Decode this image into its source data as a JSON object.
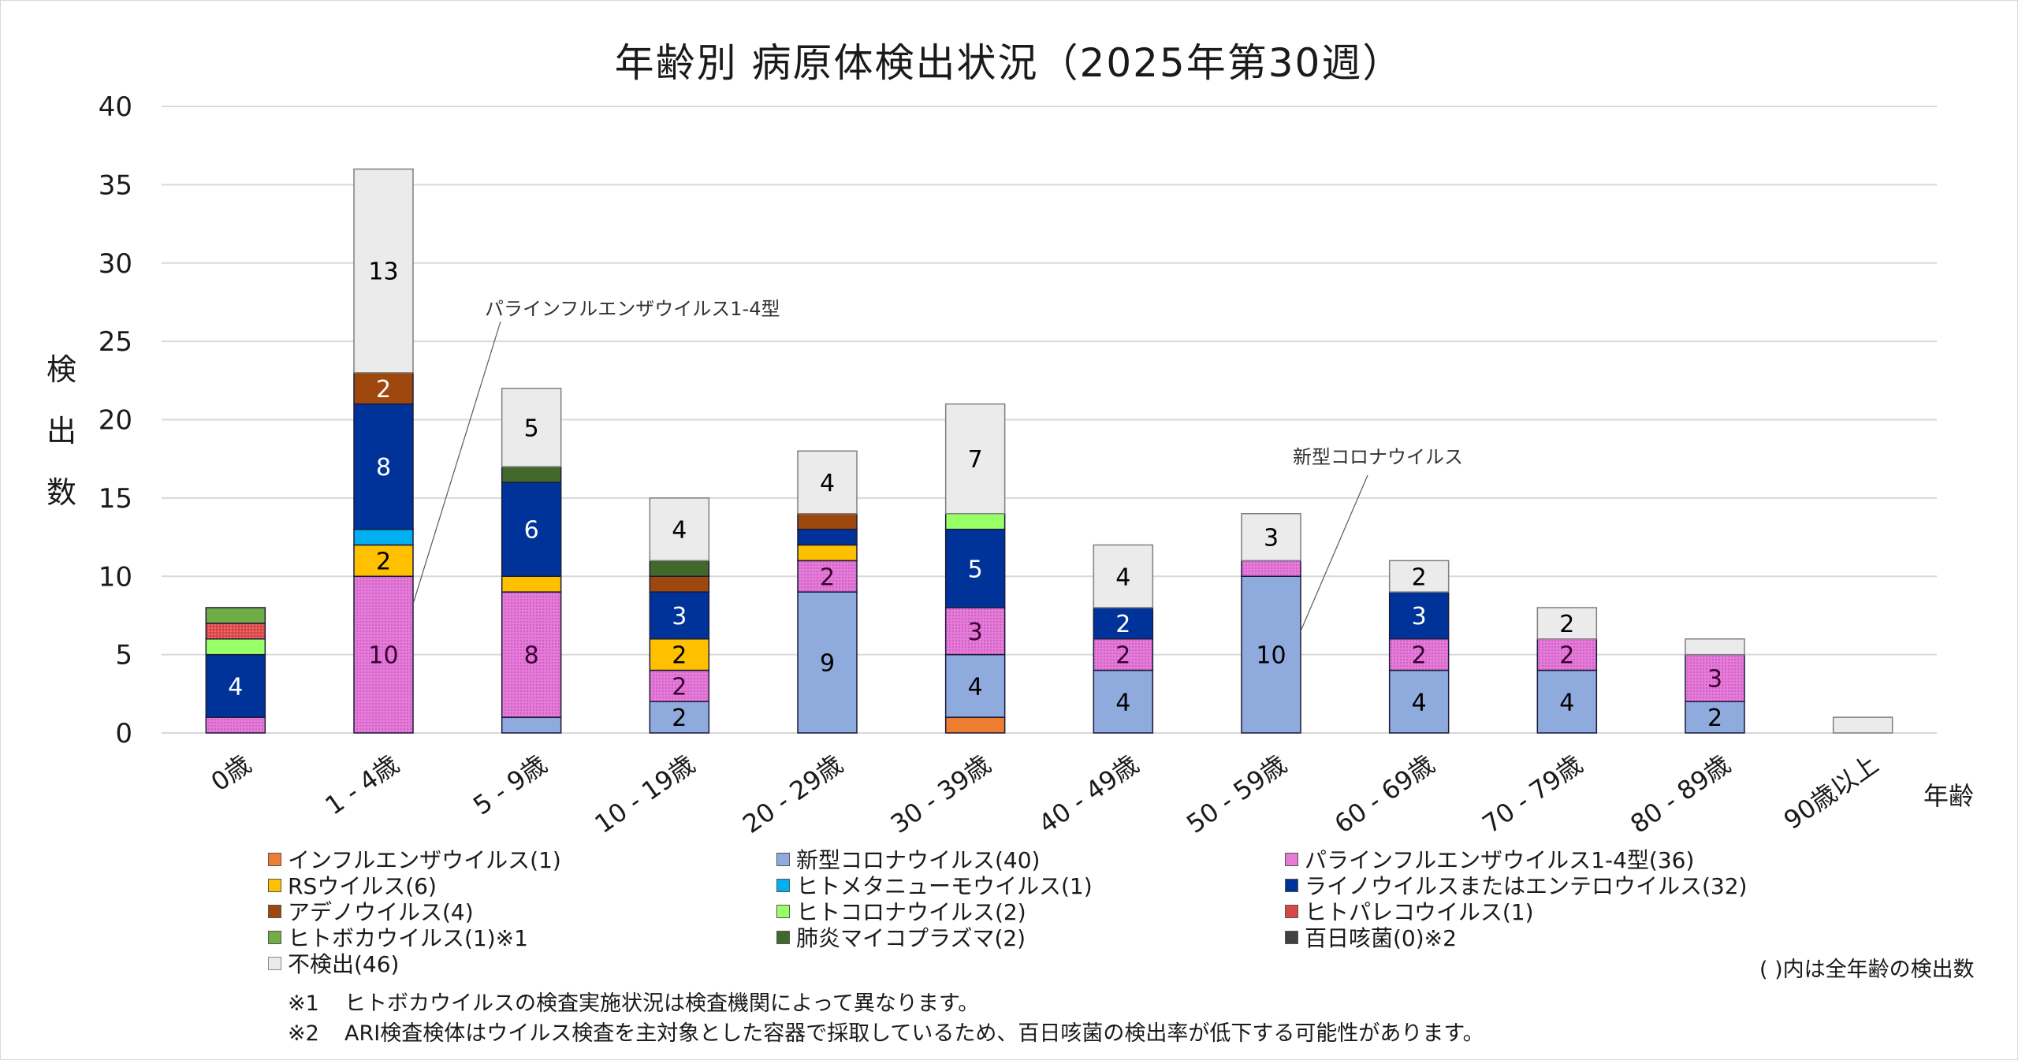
{
  "chart_data": {
    "type": "bar",
    "stacked": true,
    "title": "年齢別 病原体検出状況（2025年第30週）",
    "xlabel": "年齢",
    "ylabel": "検出数",
    "ylim": [
      0,
      40
    ],
    "yticks": [
      0,
      5,
      10,
      15,
      20,
      25,
      30,
      35,
      40
    ],
    "grid": true,
    "legend_position": "bottom",
    "categories": [
      "0歳",
      "1 - 4歳",
      "5 - 9歳",
      "10 - 19歳",
      "20 - 29歳",
      "30 - 39歳",
      "40 - 49歳",
      "50 - 59歳",
      "60 - 69歳",
      "70 - 79歳",
      "80 - 89歳",
      "90歳以上"
    ],
    "series": [
      {
        "name": "インフルエンザウイルス",
        "total": 1,
        "color": "#ED7D31",
        "label_color": "#000000",
        "pattern": false,
        "values": [
          0,
          0,
          0,
          0,
          0,
          1,
          0,
          0,
          0,
          0,
          0,
          0
        ]
      },
      {
        "name": "新型コロナウイルス",
        "total": 40,
        "color": "#8FAADC",
        "label_color": "#000000",
        "pattern": false,
        "values": [
          0,
          0,
          1,
          2,
          9,
          4,
          4,
          10,
          4,
          4,
          2,
          0
        ]
      },
      {
        "name": "パラインフルエンザウイルス1-4型",
        "total": 36,
        "color": "#E57BD8",
        "label_color": "#3a0033",
        "pattern": true,
        "values": [
          1,
          10,
          8,
          2,
          2,
          3,
          2,
          1,
          2,
          2,
          3,
          0
        ]
      },
      {
        "name": "RSウイルス",
        "total": 6,
        "color": "#FFC000",
        "label_color": "#000000",
        "pattern": false,
        "values": [
          0,
          2,
          1,
          2,
          1,
          0,
          0,
          0,
          0,
          0,
          0,
          0
        ]
      },
      {
        "name": "ヒトメタニューモウイルス",
        "total": 1,
        "color": "#00B0F0",
        "label_color": "#000000",
        "pattern": false,
        "values": [
          0,
          1,
          0,
          0,
          0,
          0,
          0,
          0,
          0,
          0,
          0,
          0
        ]
      },
      {
        "name": "ライノウイルスまたはエンテロウイルス",
        "total": 32,
        "color": "#003399",
        "label_color": "#ffffff",
        "pattern": false,
        "values": [
          4,
          8,
          6,
          3,
          1,
          5,
          2,
          0,
          3,
          0,
          0,
          0
        ]
      },
      {
        "name": "アデノウイルス",
        "total": 4,
        "color": "#9E480E",
        "label_color": "#ffffff",
        "pattern": false,
        "values": [
          0,
          2,
          0,
          1,
          1,
          0,
          0,
          0,
          0,
          0,
          0,
          0
        ]
      },
      {
        "name": "ヒトコロナウイルス",
        "total": 2,
        "color": "#99FF66",
        "label_color": "#000000",
        "pattern": false,
        "values": [
          1,
          0,
          0,
          0,
          0,
          1,
          0,
          0,
          0,
          0,
          0,
          0
        ]
      },
      {
        "name": "ヒトパレコウイルス",
        "total": 1,
        "color": "#D94848",
        "label_color": "#000000",
        "pattern": true,
        "values": [
          1,
          0,
          0,
          0,
          0,
          0,
          0,
          0,
          0,
          0,
          0,
          0
        ]
      },
      {
        "name": "ヒトボカウイルス",
        "total": 1,
        "color": "#70AD47",
        "label_color": "#000000",
        "pattern": false,
        "note": "※1",
        "values": [
          1,
          0,
          0,
          0,
          0,
          0,
          0,
          0,
          0,
          0,
          0,
          0
        ]
      },
      {
        "name": "肺炎マイコプラズマ",
        "total": 2,
        "color": "#43682B",
        "label_color": "#ffffff",
        "pattern": false,
        "values": [
          0,
          0,
          1,
          1,
          0,
          0,
          0,
          0,
          0,
          0,
          0,
          0
        ]
      },
      {
        "name": "百日咳菌",
        "total": 0,
        "color": "#404040",
        "label_color": "#ffffff",
        "pattern": false,
        "note": "※2",
        "values": [
          0,
          0,
          0,
          0,
          0,
          0,
          0,
          0,
          0,
          0,
          0,
          0
        ]
      },
      {
        "name": "不検出",
        "total": 46,
        "color": "#EBEBEB",
        "label_color": "#000000",
        "pattern": false,
        "values": [
          0,
          13,
          5,
          4,
          4,
          7,
          4,
          3,
          2,
          2,
          1,
          1
        ]
      }
    ],
    "data_labels_min_value": 2,
    "annotations": [
      {
        "text": "パラインフルエンザウイルス1-4型",
        "points_to": {
          "category": "1 - 4歳",
          "series": "パラインフルエンザウイルス1-4型"
        }
      },
      {
        "text": "新型コロナウイルス",
        "points_to": {
          "category": "50 - 59歳",
          "series": "新型コロナウイルス"
        }
      }
    ]
  },
  "legend": {
    "items": [
      "インフルエンザウイルス(1)",
      "新型コロナウイルス(40)",
      "パラインフルエンザウイルス1-4型(36)",
      "RSウイルス(6)",
      "ヒトメタニューモウイルス(1)",
      "ライノウイルスまたはエンテロウイルス(32)",
      "アデノウイルス(4)",
      "ヒトコロナウイルス(2)",
      "ヒトパレコウイルス(1)",
      "ヒトボカウイルス(1)※1",
      "肺炎マイコプラズマ(2)",
      "百日咳菌(0)※2",
      "不検出(46)"
    ],
    "note": "( )内は全年齢の検出数"
  },
  "footnotes": [
    {
      "mark": "※1",
      "text": "ヒトボカウイルスの検査実施状況は検査機関によって異なります。"
    },
    {
      "mark": "※2",
      "text": "ARI検査検体はウイルス検査を主対象とした容器で採取しているため、百日咳菌の検出率が低下する可能性があります。"
    }
  ]
}
